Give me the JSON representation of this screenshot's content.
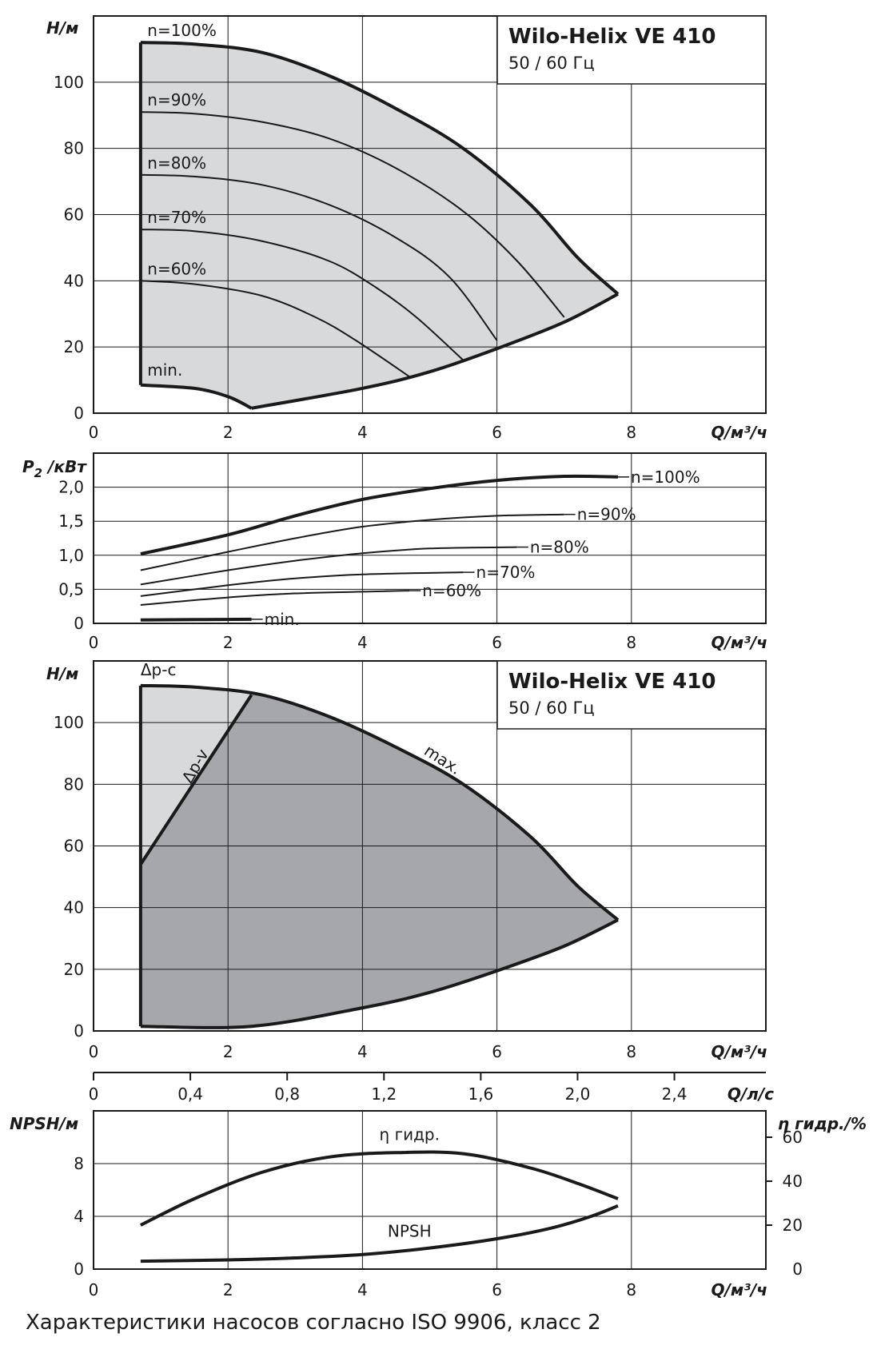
{
  "caption": "Характеристики насосов согласно ISO 9906, класс 2",
  "colors": {
    "light_fill": "#d8d9db",
    "dark_fill": "#a5a7ab",
    "line": "#1a1a1a",
    "grid": "#1a1a1a"
  },
  "chart_data": [
    {
      "type": "line",
      "title": "Wilo-Helix VE 410",
      "subtitle": "50 / 60 Гц",
      "ylabel": "H/м",
      "xlabel": "Q/м³/ч",
      "xlim": [
        0,
        10
      ],
      "ylim": [
        0,
        120
      ],
      "xticks": [
        "0",
        "2",
        "4",
        "6",
        "8"
      ],
      "yticks": [
        "0",
        "20",
        "40",
        "60",
        "80",
        "100"
      ],
      "series": [
        {
          "name": "n=100%",
          "x": [
            0.7,
            1.5,
            2.5,
            3.5,
            4.5,
            5.5,
            6.5,
            7.2,
            7.8
          ],
          "y": [
            112,
            111.5,
            109,
            102,
            92,
            80,
            63,
            47,
            36
          ]
        },
        {
          "name": "n=90%",
          "x": [
            0.7,
            1.5,
            2.5,
            3.5,
            4.5,
            5.5,
            6.3,
            7.0
          ],
          "y": [
            91,
            90.5,
            88,
            83,
            74,
            61,
            46,
            29
          ]
        },
        {
          "name": "n=80%",
          "x": [
            0.7,
            1.5,
            2.5,
            3.5,
            4.5,
            5.3,
            6.0
          ],
          "y": [
            72,
            71.5,
            69,
            63,
            53,
            41,
            22
          ]
        },
        {
          "name": "n=70%",
          "x": [
            0.7,
            1.5,
            2.5,
            3.5,
            4.2,
            4.8,
            5.5
          ],
          "y": [
            55.5,
            55,
            52,
            46,
            38,
            29,
            16
          ]
        },
        {
          "name": "n=60%",
          "x": [
            0.7,
            1.5,
            2.5,
            3.3,
            3.9,
            4.7
          ],
          "y": [
            40,
            39,
            35.5,
            29,
            22,
            11
          ]
        },
        {
          "name": "min.",
          "x": [
            0.7,
            1.5,
            2.0,
            2.35
          ],
          "y": [
            8.5,
            7.5,
            5,
            1.5
          ]
        }
      ],
      "boundary_lower": {
        "x": [
          2.35,
          4.0,
          5.0,
          6.0,
          7.0,
          7.8
        ],
        "y": [
          1.5,
          7.5,
          12.5,
          19.5,
          27.5,
          36
        ]
      }
    },
    {
      "type": "line",
      "ylabel": "P2 /кВт",
      "xlabel": "Q/м³/ч",
      "xlim": [
        0,
        10
      ],
      "ylim": [
        0,
        2.5
      ],
      "xticks": [
        "0",
        "2",
        "4",
        "6",
        "8"
      ],
      "yticks": [
        "0",
        "0,5",
        "1,0",
        "1,5",
        "2,0"
      ],
      "series": [
        {
          "name": "n=100%",
          "x": [
            0.7,
            2,
            3,
            4,
            5,
            6,
            7,
            7.8
          ],
          "y": [
            1.02,
            1.3,
            1.58,
            1.82,
            1.98,
            2.1,
            2.16,
            2.15
          ]
        },
        {
          "name": "n=90%",
          "x": [
            0.7,
            2,
            3,
            4,
            5,
            6,
            7.0
          ],
          "y": [
            0.78,
            1.05,
            1.25,
            1.42,
            1.52,
            1.58,
            1.6
          ]
        },
        {
          "name": "n=80%",
          "x": [
            0.7,
            2,
            3,
            4,
            5,
            6.3
          ],
          "y": [
            0.57,
            0.78,
            0.92,
            1.03,
            1.1,
            1.12
          ]
        },
        {
          "name": "n=70%",
          "x": [
            0.7,
            2,
            3,
            4,
            5.5
          ],
          "y": [
            0.4,
            0.56,
            0.66,
            0.72,
            0.75
          ]
        },
        {
          "name": "n=60%",
          "x": [
            0.7,
            2,
            3,
            4.7
          ],
          "y": [
            0.27,
            0.38,
            0.44,
            0.48
          ]
        },
        {
          "name": "min.",
          "x": [
            0.7,
            2.35
          ],
          "y": [
            0.05,
            0.06
          ]
        }
      ]
    },
    {
      "type": "area",
      "title": "Wilo-Helix VE 410",
      "subtitle": "50 / 60 Гц",
      "ylabel": "H/м",
      "xlabel": "Q/м³/ч",
      "xlim": [
        0,
        10
      ],
      "ylim": [
        0,
        120
      ],
      "xticks": [
        "0",
        "2",
        "4",
        "6",
        "8"
      ],
      "yticks": [
        "0",
        "20",
        "40",
        "60",
        "80",
        "100"
      ],
      "series": [
        {
          "name": "max.",
          "x": [
            0.7,
            1.5,
            2.5,
            3.5,
            4.5,
            5.5,
            6.5,
            7.2,
            7.8
          ],
          "y": [
            112,
            111.5,
            109,
            102,
            92,
            80,
            63,
            47,
            36
          ]
        },
        {
          "name": "Δp-v",
          "x": [
            0.7,
            2.35
          ],
          "y": [
            54,
            109
          ]
        },
        {
          "name": "Δp-c",
          "x": [
            0.7,
            2.35
          ],
          "y": [
            112,
            109
          ]
        }
      ],
      "boundary_lower": {
        "x": [
          0.7,
          2.35,
          4.0,
          5.0,
          6.0,
          7.0,
          7.8
        ],
        "y": [
          1.5,
          1.5,
          7.5,
          12.5,
          19.5,
          27.5,
          36
        ]
      },
      "secondary_xaxis": {
        "label": "Q/л/с",
        "xlim": [
          0,
          2.778
        ],
        "ticks": [
          "0",
          "0,4",
          "0,8",
          "1,2",
          "1,6",
          "2,0",
          "2,4"
        ]
      }
    },
    {
      "type": "line",
      "ylabel": "NPSH/м",
      "y2label": "η гидр./%",
      "xlabel": "Q/м³/ч",
      "xlim": [
        0,
        10
      ],
      "ylim": [
        0,
        12
      ],
      "y2lim": [
        0,
        72
      ],
      "xticks": [
        "0",
        "2",
        "4",
        "6",
        "8"
      ],
      "yticks": [
        "0",
        "4",
        "8"
      ],
      "y2ticks": [
        "0",
        "20",
        "40",
        "60"
      ],
      "series": [
        {
          "name": "η гидр.",
          "axis": "right",
          "x": [
            0.7,
            1.5,
            2.5,
            3.5,
            4.5,
            5.5,
            6.5,
            7.2,
            7.8
          ],
          "y": [
            20,
            32,
            44,
            51,
            53,
            52.5,
            46,
            39,
            32
          ]
        },
        {
          "name": "NPSH",
          "axis": "left",
          "x": [
            0.7,
            2,
            3,
            4,
            5,
            6,
            6.8,
            7.4,
            7.8
          ],
          "y": [
            0.6,
            0.7,
            0.85,
            1.1,
            1.6,
            2.3,
            3.1,
            4.0,
            4.8
          ]
        }
      ]
    }
  ]
}
